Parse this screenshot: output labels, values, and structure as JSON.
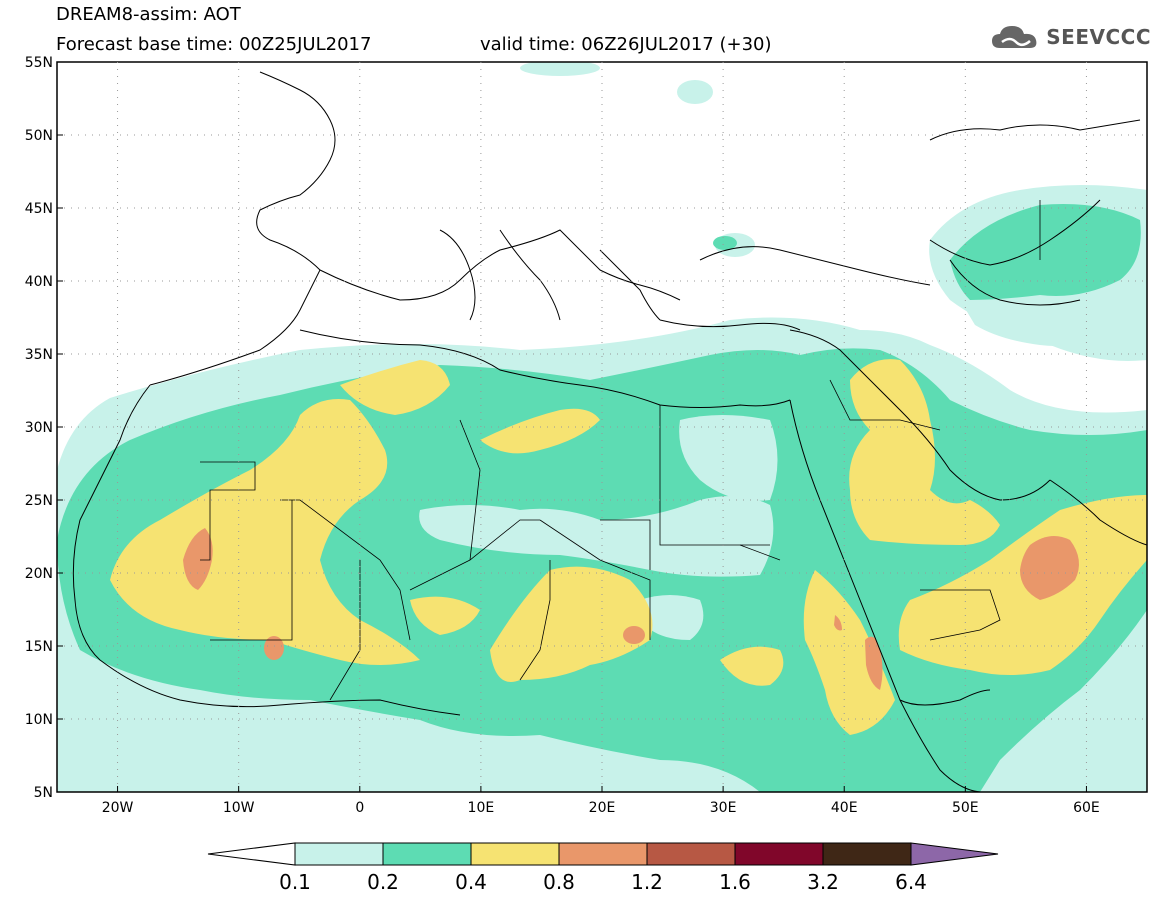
{
  "header": {
    "model_line": "DREAM8-assim: AOT",
    "base_time": "Forecast base time: 00Z25JUL2017",
    "valid_time": "valid time: 06Z26JUL2017 (+30)"
  },
  "logo": {
    "text": "SEEVCCC",
    "icon": "cloud-logo-icon"
  },
  "map": {
    "lat_ticks": [
      "55N",
      "50N",
      "45N",
      "40N",
      "35N",
      "30N",
      "25N",
      "20N",
      "15N",
      "10N",
      "5N"
    ],
    "lon_ticks": [
      "20W",
      "10W",
      "0",
      "10E",
      "20E",
      "30E",
      "40E",
      "50E",
      "60E"
    ],
    "lon_range": [
      -25,
      65
    ],
    "lat_range": [
      5,
      55
    ]
  },
  "colorbar": {
    "labels": [
      "0.1",
      "0.2",
      "0.4",
      "0.8",
      "1.2",
      "1.6",
      "3.2",
      "6.4"
    ],
    "colors": [
      "#ffffff",
      "#c8f2ea",
      "#5ddcb3",
      "#f6e372",
      "#e9976a",
      "#b75844",
      "#80062a",
      "#3f2716",
      "#8d67a8"
    ]
  }
}
